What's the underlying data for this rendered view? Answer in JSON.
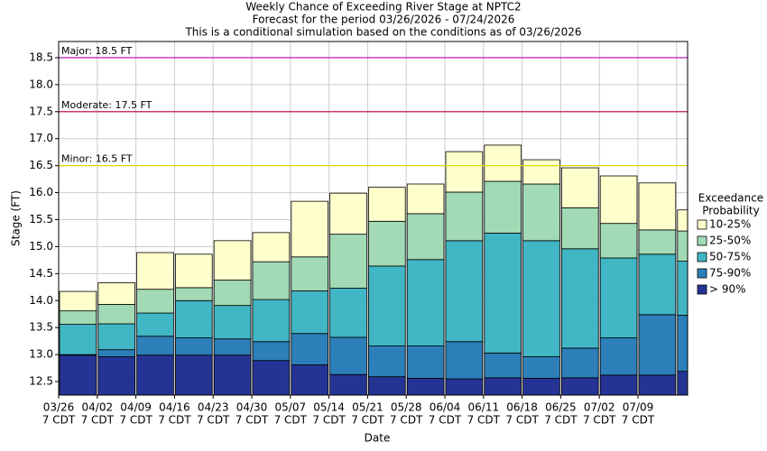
{
  "chart_data": {
    "type": "bar",
    "title": "Weekly Chance of Exceeding River Stage at NPTC2",
    "subtitle": [
      "Forecast for the period 03/26/2026 - 07/24/2026",
      "This is a conditional simulation based on the conditions as of 03/26/2026"
    ],
    "x_label": "Date",
    "y_label": "Stage (FT)",
    "categories": [
      "03/26",
      "04/02",
      "04/09",
      "04/16",
      "04/23",
      "04/30",
      "05/07",
      "05/14",
      "05/21",
      "05/28",
      "06/04",
      "06/11",
      "06/18",
      "06/25",
      "07/02",
      "07/09",
      null
    ],
    "category_sublabel": "7 CDT",
    "legend_title": [
      "Exceedance",
      "Probability"
    ],
    "series": [
      {
        "name": "> 90%",
        "color": "#253494",
        "values": [
          12.99,
          12.96,
          12.99,
          12.99,
          12.99,
          12.89,
          12.81,
          12.63,
          12.59,
          12.56,
          12.55,
          12.57,
          12.56,
          12.57,
          12.62,
          12.62,
          12.69
        ]
      },
      {
        "name": "75-90%",
        "color": "#2c7fb8",
        "values": [
          13.0,
          13.09,
          13.34,
          13.31,
          13.29,
          13.24,
          13.39,
          13.32,
          13.16,
          13.16,
          13.24,
          13.03,
          12.96,
          13.12,
          13.31,
          13.74,
          13.73
        ]
      },
      {
        "name": "50-75%",
        "color": "#41b6c4",
        "values": [
          13.56,
          13.57,
          13.77,
          14.0,
          13.91,
          14.02,
          14.18,
          14.23,
          14.64,
          14.76,
          15.11,
          15.25,
          15.11,
          14.96,
          14.79,
          14.86,
          14.73
        ]
      },
      {
        "name": "25-50%",
        "color": "#a1dab4",
        "values": [
          13.81,
          13.93,
          14.21,
          14.24,
          14.38,
          14.72,
          14.81,
          15.23,
          15.47,
          15.61,
          16.01,
          16.21,
          16.16,
          15.72,
          15.43,
          15.31,
          15.29
        ]
      },
      {
        "name": "10-25%",
        "color": "#ffffcc",
        "values": [
          14.17,
          14.33,
          14.89,
          14.86,
          15.11,
          15.26,
          15.84,
          15.99,
          16.1,
          16.16,
          16.76,
          16.88,
          16.61,
          16.46,
          16.31,
          16.18,
          15.68
        ]
      }
    ],
    "ylim": [
      12.25,
      18.8
    ],
    "yticks": [
      12.5,
      {
        "value": 13,
        "label": "13.0"
      },
      13.5,
      {
        "value": 14,
        "label": "14.0"
      },
      14.5,
      {
        "value": 15,
        "label": "15.0"
      },
      15.5,
      {
        "value": 16,
        "label": "16.0"
      },
      16.5,
      {
        "value": 17,
        "label": "17.0"
      },
      17.5,
      {
        "value": 18,
        "label": "18.0"
      },
      18.5
    ],
    "thresholds": [
      {
        "label": "Major: 18.5 FT",
        "value": 18.5,
        "color": "#b000b0"
      },
      {
        "label": "Moderate: 17.5 FT",
        "value": 17.5,
        "color": "#c00040"
      },
      {
        "label": "Minor: 16.5 FT",
        "value": 16.5,
        "color": "#e0d800"
      }
    ],
    "grid": true
  }
}
